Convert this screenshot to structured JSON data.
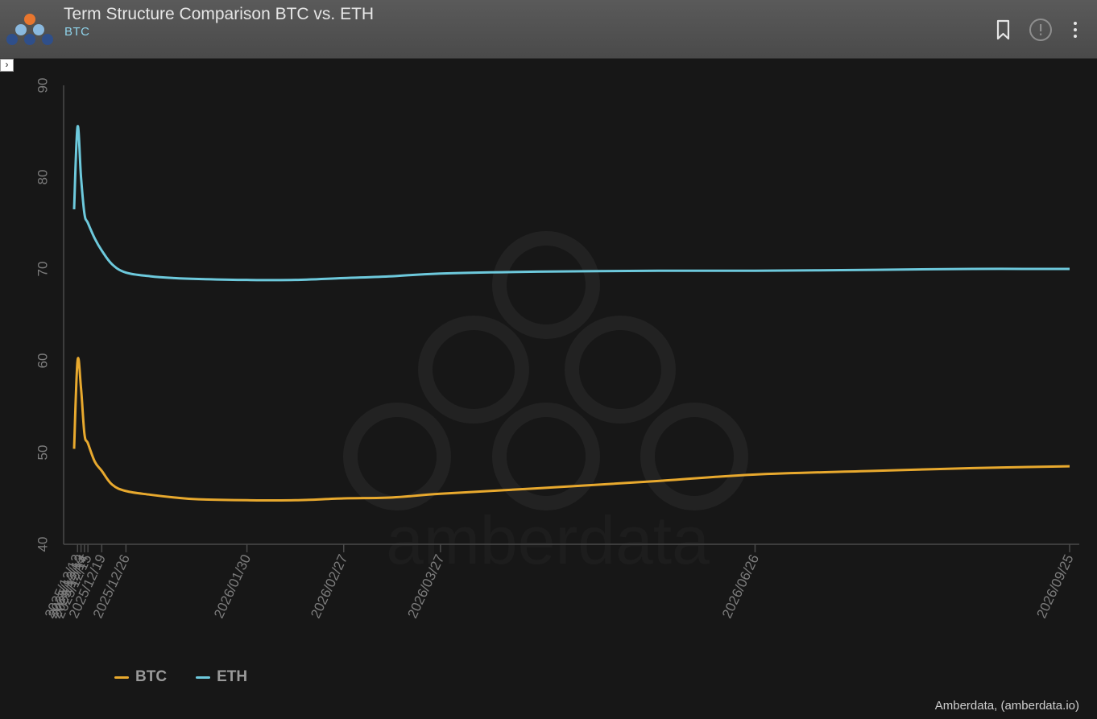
{
  "header": {
    "title": "Term Structure Comparison BTC vs. ETH",
    "subtitle": "BTC"
  },
  "credit": "Amberdata, (amberdata.io)",
  "watermark": "amberdata",
  "colors": {
    "btc": "#e8a92e",
    "eth": "#6dc9dc",
    "header_bg": "#525252",
    "plot_bg": "#171717"
  },
  "icons": [
    "bookmark-icon",
    "info-circle-icon",
    "more-vertical-icon",
    "chevron-right-icon"
  ],
  "legend": [
    {
      "name": "BTC",
      "color": "#e8a92e"
    },
    {
      "name": "ETH",
      "color": "#6dc9dc"
    }
  ],
  "chart_data": {
    "type": "line",
    "title": "Term Structure Comparison BTC vs. ETH",
    "xlabel": "",
    "ylabel": "",
    "ylim": [
      40,
      90
    ],
    "yticks": [
      40,
      50,
      60,
      70,
      80,
      90
    ],
    "grid": false,
    "legend_position": "bottom-left",
    "xticks": [
      "2025/12/12",
      "2025/12/13",
      "2025/12/14",
      "2025/12/15",
      "2025/12/19",
      "2025/12/26",
      "2026/01/30",
      "2026/02/27",
      "2026/03/27",
      "2026/06/26",
      "2026/09/25"
    ],
    "x": [
      "2025/12/11",
      "2025/12/12",
      "2025/12/13",
      "2025/12/14",
      "2025/12/15",
      "2025/12/17",
      "2025/12/19",
      "2025/12/22",
      "2025/12/26",
      "2026/01/02",
      "2026/01/09",
      "2026/01/16",
      "2026/01/30",
      "2026/02/13",
      "2026/02/27",
      "2026/03/13",
      "2026/03/27",
      "2026/04/24",
      "2026/05/29",
      "2026/06/26",
      "2026/07/31",
      "2026/08/28",
      "2026/09/25"
    ],
    "series": [
      {
        "name": "BTC",
        "color": "#e8a92e",
        "values": [
          50.4,
          60.0,
          57.0,
          52.0,
          51.0,
          49.0,
          48.0,
          46.5,
          45.8,
          45.4,
          45.1,
          44.9,
          44.8,
          44.8,
          45.0,
          45.1,
          45.5,
          46.1,
          46.9,
          47.6,
          48.0,
          48.3,
          48.5
        ]
      },
      {
        "name": "ETH",
        "color": "#6dc9dc",
        "values": [
          76.5,
          85.5,
          80.0,
          76.0,
          75.0,
          73.3,
          72.0,
          70.5,
          69.6,
          69.2,
          69.0,
          68.9,
          68.8,
          68.8,
          69.0,
          69.2,
          69.5,
          69.7,
          69.8,
          69.8,
          69.9,
          70.0,
          70.0
        ]
      }
    ]
  }
}
